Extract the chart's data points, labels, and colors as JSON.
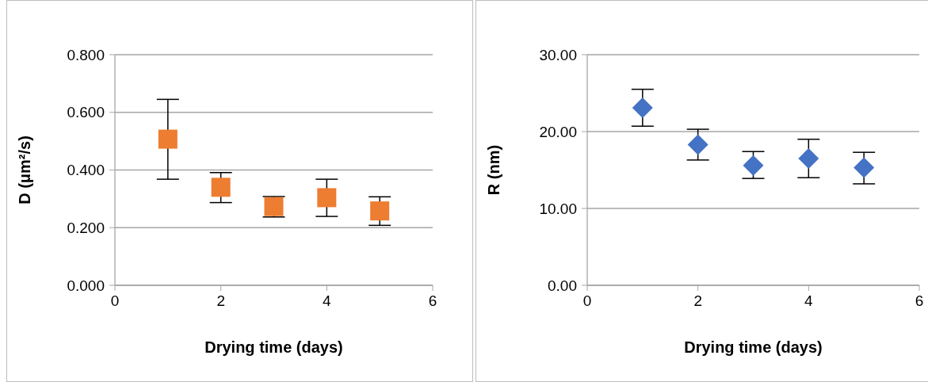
{
  "chart_data": [
    {
      "type": "scatter",
      "xlabel": "Drying time (days)",
      "ylabel": "D (μm²/s)",
      "x": [
        1,
        2,
        3,
        4,
        5
      ],
      "xlim": [
        0,
        6
      ],
      "xticks": [
        0,
        2,
        4,
        6
      ],
      "ylim": [
        0,
        0.8
      ],
      "yticks": [
        {
          "value": 0,
          "label": "0.000"
        },
        {
          "value": 0.2,
          "label": "0.200"
        },
        {
          "value": 0.4,
          "label": "0.400"
        },
        {
          "value": 0.6,
          "label": "0.600"
        },
        {
          "value": 0.8,
          "label": "0.800"
        }
      ],
      "grid": "y",
      "marker": "square",
      "series": [
        {
          "color": "#ed7d31",
          "values": [
            0.507,
            0.34,
            0.273,
            0.304,
            0.258
          ],
          "errors": [
            [
              0.368,
              0.645
            ],
            [
              0.287,
              0.391
            ],
            [
              0.237,
              0.308
            ],
            [
              0.239,
              0.368
            ],
            [
              0.208,
              0.307
            ]
          ]
        }
      ]
    },
    {
      "type": "scatter",
      "xlabel": "Drying time (days)",
      "ylabel": "R (nm)",
      "x": [
        1,
        2,
        3,
        4,
        5
      ],
      "xlim": [
        0,
        6
      ],
      "xticks": [
        0,
        2,
        4,
        6
      ],
      "ylim": [
        0,
        30
      ],
      "yticks": [
        {
          "value": 0,
          "label": "0.00"
        },
        {
          "value": 10,
          "label": "10.00"
        },
        {
          "value": 20,
          "label": "20.00"
        },
        {
          "value": 30,
          "label": "30.00"
        }
      ],
      "grid": "y",
      "marker": "diamond",
      "series": [
        {
          "color": "#4472c4",
          "values": [
            23.1,
            18.3,
            15.6,
            16.5,
            15.3
          ],
          "errors": [
            [
              20.7,
              25.5
            ],
            [
              16.3,
              20.3
            ],
            [
              13.9,
              17.4
            ],
            [
              14.0,
              19.0
            ],
            [
              13.2,
              17.3
            ]
          ]
        }
      ]
    }
  ]
}
